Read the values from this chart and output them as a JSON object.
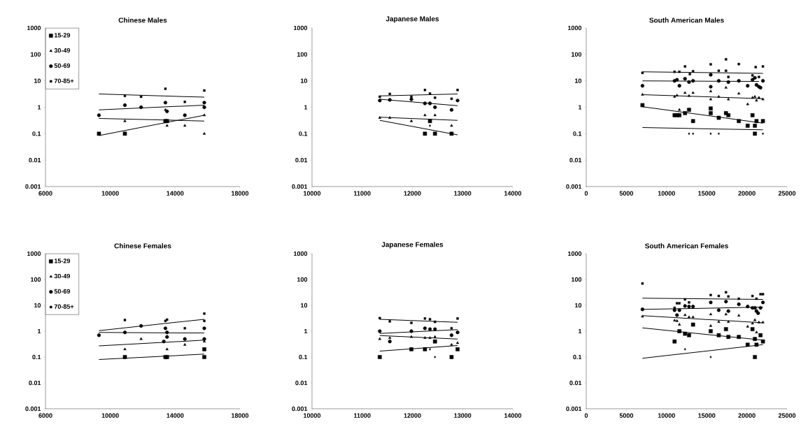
{
  "chart_data": [
    {
      "type": "scatter",
      "title": "Chinese Males",
      "log": "y",
      "legend": "top left",
      "xlim": [
        6000,
        18000
      ],
      "xticks": [
        6000,
        10000,
        14000,
        18000
      ],
      "ylim": [
        0.001,
        1000
      ],
      "yticks": [
        0.001,
        0.01,
        0.1,
        1,
        10,
        100,
        1000
      ],
      "series": [
        {
          "name": "15-29",
          "color": "#000000",
          "marker": "square",
          "x": [
            9300,
            10900,
            13400,
            13500
          ],
          "values": [
            0.1,
            0.1,
            0.3,
            0.3
          ]
        },
        {
          "name": "30-49",
          "color": "#000000",
          "marker": "triangle",
          "x": [
            10900,
            13400,
            13500,
            14600,
            15800,
            15800
          ],
          "values": [
            0.3,
            0.8,
            0.2,
            0.2,
            0.1,
            0.5
          ]
        },
        {
          "name": "50-69",
          "color": "#000000",
          "marker": "circle",
          "x": [
            9300,
            10900,
            11900,
            13400,
            13500,
            14600,
            15800,
            15800
          ],
          "values": [
            0.5,
            1.2,
            1,
            1.5,
            0.7,
            0.5,
            1,
            1.5
          ]
        },
        {
          "name": "70-85+",
          "color": "#000000",
          "marker": "square",
          "x": [
            10900,
            11900,
            13400,
            14600,
            15800
          ],
          "values": [
            2.7,
            2.5,
            5,
            1.6,
            4.3
          ]
        },
        {
          "type": "line",
          "color": "#000000",
          "marker": "none",
          "x": [
            9300,
            15800
          ],
          "values": [
            0.085,
            0.5
          ]
        },
        {
          "type": "line",
          "color": "#000000",
          "marker": "none",
          "x": [
            9300,
            15800
          ],
          "values": [
            0.38,
            0.3
          ]
        },
        {
          "type": "line",
          "color": "#000000",
          "marker": "none",
          "x": [
            9300,
            15800
          ],
          "values": [
            0.8,
            1.2
          ]
        },
        {
          "type": "line",
          "color": "#000000",
          "marker": "none",
          "x": [
            9300,
            15800
          ],
          "values": [
            3.2,
            2.4
          ]
        }
      ]
    },
    {
      "type": "scatter",
      "title": "Japanese Males",
      "log": "y",
      "xlim": [
        10000,
        14000
      ],
      "xticks": [
        10000,
        11000,
        12000,
        13000,
        14000
      ],
      "ylim": [
        0.001,
        1000
      ],
      "yticks": [
        0.001,
        0.01,
        0.1,
        1,
        10,
        100,
        1000
      ],
      "series": [
        {
          "color": "#000000",
          "marker": "square",
          "x": [
            12250,
            12450,
            12780,
            12350
          ],
          "values": [
            0.1,
            0.1,
            0.1,
            0.3
          ]
        },
        {
          "color": "#000000",
          "marker": "triangle",
          "x": [
            11350,
            11550,
            11980,
            12250,
            12350,
            12450,
            12780
          ],
          "values": [
            0.4,
            0.4,
            0.3,
            0.5,
            null,
            0.5,
            0.2
          ]
        },
        {
          "color": "#000000",
          "marker": "circle",
          "x": [
            11350,
            11550,
            11980,
            12250,
            12350,
            12450,
            12780,
            12900
          ],
          "values": [
            1.8,
            1.9,
            2,
            1.4,
            1.4,
            1,
            0.8,
            1.8
          ]
        },
        {
          "color": "#000000",
          "marker": "square",
          "x": [
            11350,
            11550,
            11980,
            12250,
            12350,
            12450,
            12780,
            12900
          ],
          "values": [
            2.5,
            3.2,
            2.5,
            4.5,
            3.3,
            2.3,
            2.1,
            4.5
          ]
        },
        {
          "color": "#000000",
          "marker": "diamond",
          "x": [
            12350
          ],
          "values": [
            0.2
          ]
        },
        {
          "type": "line",
          "color": "#000000",
          "marker": "none",
          "x": [
            11350,
            12900
          ],
          "values": [
            0.32,
            0.09
          ]
        },
        {
          "type": "line",
          "color": "#000000",
          "marker": "none",
          "x": [
            11350,
            12900
          ],
          "values": [
            0.42,
            0.32
          ]
        },
        {
          "type": "line",
          "color": "#000000",
          "marker": "none",
          "x": [
            11350,
            12900
          ],
          "values": [
            2,
            1.15
          ]
        },
        {
          "type": "line",
          "color": "#000000",
          "marker": "none",
          "x": [
            11350,
            12900
          ],
          "values": [
            2.7,
            3.2
          ]
        }
      ]
    },
    {
      "type": "scatter",
      "title": "South American Males",
      "log": "y",
      "xlim": [
        0,
        25000
      ],
      "xticks": [
        0,
        5000,
        10000,
        15000,
        20000,
        25000
      ],
      "ylim": [
        0.001,
        1000
      ],
      "yticks": [
        0.001,
        0.01,
        0.1,
        1,
        10,
        100,
        1000
      ],
      "series": [
        {
          "color": "#000000",
          "marker": "square",
          "x": [
            7000,
            11000,
            11300,
            11600,
            12300,
            12800,
            13300,
            15500,
            15500,
            16500,
            17400,
            17700,
            19000,
            20100,
            20700,
            21000,
            21200,
            21000,
            22000
          ],
          "values": [
            1.2,
            0.5,
            0.5,
            0.5,
            0.6,
            0.8,
            0.3,
            0.9,
            0.6,
            0.4,
            0.6,
            0.5,
            0.3,
            0.2,
            0.5,
            0.1,
            0.3,
            0.2,
            0.3
          ]
        },
        {
          "color": "#000000",
          "marker": "triangle",
          "x": [
            7000,
            11000,
            11300,
            11600,
            12300,
            12800,
            13300,
            15500,
            15500,
            16500,
            17400,
            17700,
            19000,
            20100,
            20700,
            21000,
            21200,
            21500,
            22000
          ],
          "values": [
            3,
            2.5,
            2.8,
            0.8,
            3.5,
            2.7,
            3.5,
            4,
            2,
            2.5,
            5.5,
            2,
            3.3,
            1.3,
            2.3,
            2.5,
            1.8,
            2.3,
            2
          ]
        },
        {
          "color": "#000000",
          "marker": "circle",
          "x": [
            7000,
            11000,
            11300,
            11600,
            12300,
            12800,
            13300,
            15500,
            15500,
            16500,
            17700,
            19000,
            20100,
            20700,
            21000,
            21200,
            21500,
            21700,
            22000
          ],
          "values": [
            6.5,
            10,
            11,
            6.5,
            12,
            9,
            10,
            17,
            6,
            10,
            9,
            10,
            6.5,
            11,
            13,
            7,
            6,
            5.5,
            10
          ]
        },
        {
          "color": "#000000",
          "marker": "square",
          "x": [
            7000,
            11000,
            11600,
            12300,
            12900,
            13300,
            15500,
            16500,
            17400,
            17400,
            17700,
            19000,
            20700,
            21100,
            21500,
            22000
          ],
          "values": [
            20,
            22,
            22,
            35,
            18,
            23,
            42,
            24,
            65,
            24,
            14,
            43,
            16,
            33,
            14,
            35
          ]
        },
        {
          "color": "#000000",
          "marker": "diamond",
          "x": [
            12800,
            13300,
            15500,
            16500,
            22000
          ],
          "values": [
            0.1,
            0.1,
            0.1,
            0.1,
            0.1
          ]
        },
        {
          "type": "line",
          "color": "#000000",
          "marker": "none",
          "x": [
            7000,
            22000
          ],
          "values": [
            1.05,
            0.25
          ]
        },
        {
          "type": "line",
          "color": "#000000",
          "marker": "none",
          "x": [
            7000,
            22000
          ],
          "values": [
            3,
            2.1
          ]
        },
        {
          "type": "line",
          "color": "#000000",
          "marker": "none",
          "x": [
            7000,
            21500
          ],
          "values": [
            10,
            9.5
          ]
        },
        {
          "type": "line",
          "color": "#000000",
          "marker": "none",
          "x": [
            7000,
            22000
          ],
          "values": [
            22,
            19
          ]
        },
        {
          "type": "line",
          "color": "#000000",
          "marker": "none",
          "x": [
            7000,
            22000
          ],
          "values": [
            0.17,
            0.14
          ]
        }
      ]
    },
    {
      "type": "scatter",
      "title": "Chinese Females",
      "log": "y",
      "legend": "top left",
      "xlim": [
        6000,
        18000
      ],
      "xticks": [
        6000,
        10000,
        14000,
        18000
      ],
      "ylim": [
        0.001,
        1000
      ],
      "yticks": [
        0.001,
        0.01,
        0.1,
        1,
        10,
        100,
        1000
      ],
      "series": [
        {
          "name": "15-29",
          "color": "#000000",
          "marker": "square",
          "x": [
            10900,
            13400,
            13500,
            15800,
            15800
          ],
          "values": [
            0.1,
            0.1,
            0.1,
            0.1,
            0.2
          ]
        },
        {
          "name": "30-49",
          "color": "#000000",
          "marker": "triangle",
          "x": [
            10900,
            11900,
            13500,
            14600,
            15800
          ],
          "values": [
            0.2,
            0.5,
            0.2,
            0.3,
            0.4
          ]
        },
        {
          "name": "50-69",
          "color": "#000000",
          "marker": "circle",
          "x": [
            9300,
            10900,
            11900,
            13300,
            13400,
            13500,
            13500,
            14600,
            15800,
            15800
          ],
          "values": [
            0.7,
            0.9,
            1.6,
            0.4,
            1.3,
            0.6,
            0.9,
            0.5,
            1.3,
            0.5
          ]
        },
        {
          "name": "70-85+",
          "color": "#000000",
          "marker": "square",
          "x": [
            10900,
            13400,
            13500,
            14600,
            15800,
            15800
          ],
          "values": [
            2.7,
            2.5,
            2.8,
            1.3,
            4.8,
            2.5
          ]
        },
        {
          "type": "line",
          "color": "#000000",
          "marker": "none",
          "x": [
            9300,
            15800
          ],
          "values": [
            0.08,
            0.13
          ]
        },
        {
          "type": "line",
          "color": "#000000",
          "marker": "none",
          "x": [
            9300,
            15800
          ],
          "values": [
            0.27,
            0.45
          ]
        },
        {
          "type": "line",
          "color": "#000000",
          "marker": "none",
          "x": [
            9300,
            15800
          ],
          "values": [
            0.9,
            0.85
          ]
        },
        {
          "type": "line",
          "color": "#000000",
          "marker": "none",
          "x": [
            9300,
            15800
          ],
          "values": [
            1.05,
            2.9
          ]
        }
      ]
    },
    {
      "type": "scatter",
      "title": "Japanese Females",
      "log": "y",
      "xlim": [
        10000,
        14000
      ],
      "xticks": [
        10000,
        11000,
        12000,
        13000,
        14000
      ],
      "ylim": [
        0.001,
        1000
      ],
      "yticks": [
        0.001,
        0.01,
        0.1,
        1,
        10,
        100,
        1000
      ],
      "series": [
        {
          "color": "#000000",
          "marker": "square",
          "x": [
            11350,
            11980,
            12250,
            12450,
            12780,
            12900
          ],
          "values": [
            0.1,
            0.2,
            0.2,
            0.4,
            0.1,
            0.2
          ]
        },
        {
          "color": "#000000",
          "marker": "triangle",
          "x": [
            11350,
            11550,
            11980,
            12250,
            12350,
            12450,
            12780,
            12900
          ],
          "values": [
            0.5,
            0.55,
            0.6,
            0.55,
            0.55,
            0.6,
            0.3,
            0.35
          ]
        },
        {
          "color": "#000000",
          "marker": "circle",
          "x": [
            11350,
            11550,
            11980,
            12250,
            12350,
            12450,
            12780,
            12900
          ],
          "values": [
            1,
            0.4,
            1,
            1.3,
            1.2,
            1.2,
            0.7,
            0.9
          ]
        },
        {
          "color": "#000000",
          "marker": "square",
          "x": [
            11350,
            11550,
            11980,
            12250,
            12350,
            12450,
            12780,
            12900
          ],
          "values": [
            3.2,
            2.4,
            2.1,
            3.1,
            2.9,
            2.3,
            1.3,
            3.1
          ]
        },
        {
          "color": "#000000",
          "marker": "diamond",
          "x": [
            12350,
            12450
          ],
          "values": [
            0.2,
            0.1
          ]
        },
        {
          "type": "line",
          "color": "#000000",
          "marker": "none",
          "x": [
            11350,
            12900
          ],
          "values": [
            0.17,
            0.28
          ]
        },
        {
          "type": "line",
          "color": "#000000",
          "marker": "none",
          "x": [
            11350,
            12900
          ],
          "values": [
            0.68,
            0.5
          ]
        },
        {
          "type": "line",
          "color": "#000000",
          "marker": "none",
          "x": [
            11350,
            12900
          ],
          "values": [
            0.82,
            1.15
          ]
        },
        {
          "type": "line",
          "color": "#000000",
          "marker": "none",
          "x": [
            11350,
            12900
          ],
          "values": [
            2.9,
            2.2
          ]
        }
      ]
    },
    {
      "type": "scatter",
      "title": "South American Females",
      "log": "y",
      "xlim": [
        0,
        25000
      ],
      "xticks": [
        0,
        5000,
        10000,
        15000,
        20000,
        25000
      ],
      "ylim": [
        0.001,
        1000
      ],
      "yticks": [
        0.001,
        0.01,
        0.1,
        1,
        10,
        100,
        1000
      ],
      "series": [
        {
          "color": "#000000",
          "marker": "square",
          "x": [
            11000,
            11600,
            12300,
            12800,
            13300,
            15500,
            16500,
            17400,
            17700,
            19000,
            20100,
            20700,
            21000,
            21000,
            21200,
            21700,
            22000
          ],
          "values": [
            0.4,
            1,
            0.8,
            0.7,
            1.8,
            1,
            0.7,
            1.2,
            0.6,
            0.6,
            0.3,
            1.2,
            0.5,
            0.1,
            0.3,
            0.7,
            0.4
          ]
        },
        {
          "color": "#000000",
          "marker": "triangle",
          "x": [
            7000,
            11000,
            11300,
            11600,
            12300,
            12800,
            13300,
            15500,
            15500,
            16500,
            17400,
            17700,
            19000,
            20100,
            20700,
            21000,
            21200,
            21500,
            22000
          ],
          "values": [
            3.7,
            2.6,
            2.5,
            1.8,
            4.2,
            3.5,
            3.5,
            4.5,
            1.6,
            2.3,
            4.5,
            2.3,
            4,
            1.5,
            2,
            2.7,
            0.9,
            2.2,
            2.2
          ]
        },
        {
          "color": "#000000",
          "marker": "circle",
          "x": [
            7000,
            11000,
            11300,
            11600,
            12300,
            12800,
            13300,
            15500,
            16500,
            17400,
            17700,
            19000,
            20100,
            20700,
            21000,
            21200,
            21400,
            21700,
            22000
          ],
          "values": [
            7,
            6.5,
            4.2,
            6.5,
            9.5,
            9,
            9,
            13,
            6.5,
            14,
            6,
            11,
            9,
            8,
            8,
            6,
            5,
            8,
            13
          ]
        },
        {
          "color": "#000000",
          "marker": "square",
          "x": [
            7000,
            11000,
            11300,
            11600,
            12300,
            12800,
            15500,
            16500,
            17400,
            17700,
            19000,
            20700,
            21200,
            21700,
            22000
          ],
          "values": [
            70,
            8,
            12,
            12,
            17,
            13,
            25,
            23,
            32,
            22,
            18,
            23,
            18,
            27,
            27
          ]
        },
        {
          "color": "#000000",
          "marker": "diamond",
          "x": [
            12300,
            15500
          ],
          "values": [
            0.2,
            0.1
          ]
        },
        {
          "type": "line",
          "color": "#000000",
          "marker": "none",
          "x": [
            7000,
            22000
          ],
          "values": [
            1.35,
            0.45
          ]
        },
        {
          "type": "line",
          "color": "#000000",
          "marker": "none",
          "x": [
            7000,
            22000
          ],
          "values": [
            4,
            2.1
          ]
        },
        {
          "type": "line",
          "color": "#000000",
          "marker": "none",
          "x": [
            7000,
            22000
          ],
          "values": [
            7,
            8.5
          ]
        },
        {
          "type": "line",
          "color": "#000000",
          "marker": "none",
          "x": [
            7000,
            22000
          ],
          "values": [
            19,
            17
          ]
        },
        {
          "type": "line",
          "color": "#000000",
          "marker": "none",
          "x": [
            7000,
            22000
          ],
          "values": [
            0.09,
            0.3
          ]
        }
      ]
    }
  ]
}
